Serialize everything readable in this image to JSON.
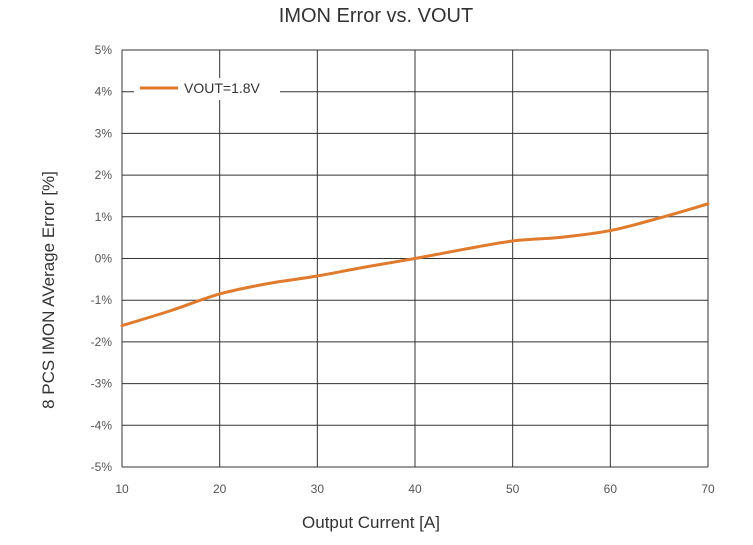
{
  "chart_data": {
    "type": "line",
    "title": "IMON Error vs. VOUT",
    "xlabel": "Output Current [A]",
    "ylabel": "8 PCS IMON AVerage Error [%]",
    "xlim": [
      10,
      70
    ],
    "ylim": [
      -5,
      5
    ],
    "xticks": [
      10,
      20,
      30,
      40,
      50,
      60,
      70
    ],
    "xtick_labels": [
      "10",
      "20",
      "30",
      "40",
      "50",
      "60",
      "70"
    ],
    "yticks": [
      5,
      4,
      3,
      2,
      1,
      0,
      -1,
      -2,
      -3,
      -4,
      -5
    ],
    "ytick_labels": [
      "5%",
      "4%",
      "3%",
      "2%",
      "1%",
      "0%",
      "-1%",
      "-2%",
      "-3%",
      "-4%",
      "-5%"
    ],
    "grid": true,
    "legend_position": "top-left",
    "series": [
      {
        "name": "VOUT=1.8V",
        "color": "#E07B2E",
        "x": [
          10,
          15,
          20,
          25,
          30,
          35,
          40,
          45,
          50,
          55,
          60,
          65,
          70
        ],
        "y": [
          -1.61,
          -1.25,
          -0.85,
          -0.6,
          -0.42,
          -0.2,
          0.0,
          0.22,
          0.42,
          0.51,
          0.67,
          0.97,
          1.31
        ]
      }
    ]
  }
}
